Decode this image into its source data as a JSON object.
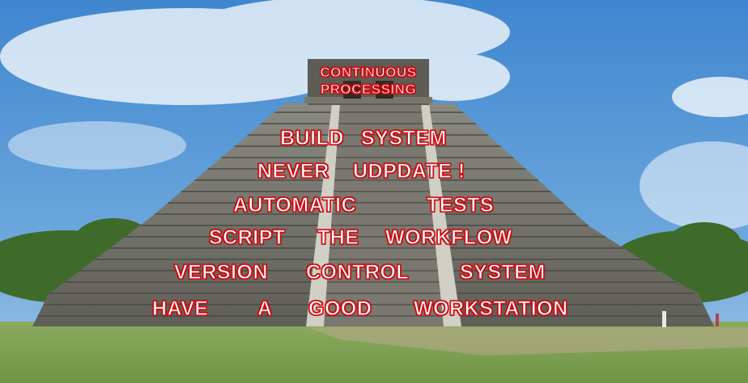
{
  "pyramid_layers": {
    "top_line1": "CONTINUOUS",
    "top_line2": "PROCESSING",
    "layer1": {
      "a": "BUILD",
      "b": "SYSTEM"
    },
    "layer2": {
      "a": "NEVER",
      "b": "UDPDATE !"
    },
    "layer3": {
      "a": "AUTOMATIC",
      "b": "TESTS"
    },
    "layer4": {
      "a": "SCRIPT",
      "b": "THE",
      "c": "WORKFLOW"
    },
    "layer5": {
      "a": "VERSION",
      "b": "CONTROL",
      "c": "SYSTEM"
    },
    "layer6": {
      "a": "HAVE",
      "b": "A",
      "c": "GOOD",
      "d": "WORKSTATION"
    }
  },
  "colors": {
    "sky": "#4a8fd0",
    "stone": "#6f6f68",
    "grass": "#7fa055",
    "text_fill": "#ffffff",
    "text_outline": "#d0141c"
  }
}
